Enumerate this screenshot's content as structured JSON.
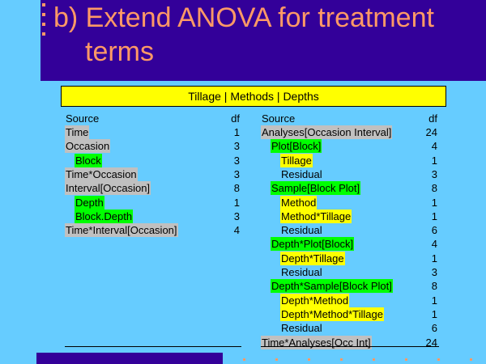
{
  "slide": {
    "title_line1": "b) Extend ANOVA for treatment",
    "title_line2": "terms",
    "banner": "Tillage | Methods | Depths"
  },
  "left_table": {
    "header": {
      "source": "Source",
      "df": "df"
    },
    "rows": [
      {
        "source": "Time",
        "df": "1",
        "indent": 0,
        "highlight": "gray"
      },
      {
        "source": "Occasion",
        "df": "3",
        "indent": 0,
        "highlight": "gray"
      },
      {
        "source": "Block",
        "df": "3",
        "indent": 1,
        "highlight": "green"
      },
      {
        "source": "Time*Occasion",
        "df": "3",
        "indent": 0,
        "highlight": "gray"
      },
      {
        "source": "Interval[Occasion]",
        "df": "8",
        "indent": 0,
        "highlight": "gray"
      },
      {
        "source": "Depth",
        "df": "1",
        "indent": 1,
        "highlight": "green"
      },
      {
        "source": "Block.Depth",
        "df": "3",
        "indent": 1,
        "highlight": "green"
      },
      {
        "source": "Time*Interval[Occasion]",
        "df": "4",
        "indent": 0,
        "highlight": "gray"
      }
    ]
  },
  "right_table": {
    "header": {
      "source": "Source",
      "df": "df"
    },
    "rows": [
      {
        "source": "Analyses[Occasion Interval]",
        "df": "24",
        "indent": 0,
        "highlight": "gray"
      },
      {
        "source": "Plot[Block]",
        "df": "4",
        "indent": 1,
        "highlight": "green"
      },
      {
        "source": "Tillage",
        "df": "1",
        "indent": 2,
        "highlight": "yellow"
      },
      {
        "source": "Residual",
        "df": "3",
        "indent": 2,
        "highlight": "none"
      },
      {
        "source": "Sample[Block Plot]",
        "df": "8",
        "indent": 1,
        "highlight": "green"
      },
      {
        "source": "Method",
        "df": "1",
        "indent": 2,
        "highlight": "yellow"
      },
      {
        "source": "Method*Tillage",
        "df": "1",
        "indent": 2,
        "highlight": "yellow"
      },
      {
        "source": "Residual",
        "df": "6",
        "indent": 2,
        "highlight": "none"
      },
      {
        "source": "Depth*Plot[Block]",
        "df": "4",
        "indent": 1,
        "highlight": "green"
      },
      {
        "source": "Depth*Tillage",
        "df": "1",
        "indent": 2,
        "highlight": "yellow"
      },
      {
        "source": "Residual",
        "df": "3",
        "indent": 2,
        "highlight": "none"
      },
      {
        "source": "Depth*Sample[Block Plot]",
        "df": "8",
        "indent": 1,
        "highlight": "green"
      },
      {
        "source": "Depth*Method",
        "df": "1",
        "indent": 2,
        "highlight": "yellow"
      },
      {
        "source": "Depth*Method*Tillage",
        "df": "1",
        "indent": 2,
        "highlight": "yellow"
      },
      {
        "source": "Residual",
        "df": "6",
        "indent": 2,
        "highlight": "none"
      },
      {
        "source": "Time*Analyses[Occ Int]",
        "df": "24",
        "indent": 0,
        "highlight": "gray"
      }
    ]
  },
  "colors": {
    "background": "#66CCFF",
    "title_band": "#330099",
    "title_text": "#FF9966",
    "banner": "#FFFF00",
    "highlight_gray": "#C0C0C0",
    "highlight_green": "#00FF00",
    "highlight_yellow": "#FFFF00"
  }
}
